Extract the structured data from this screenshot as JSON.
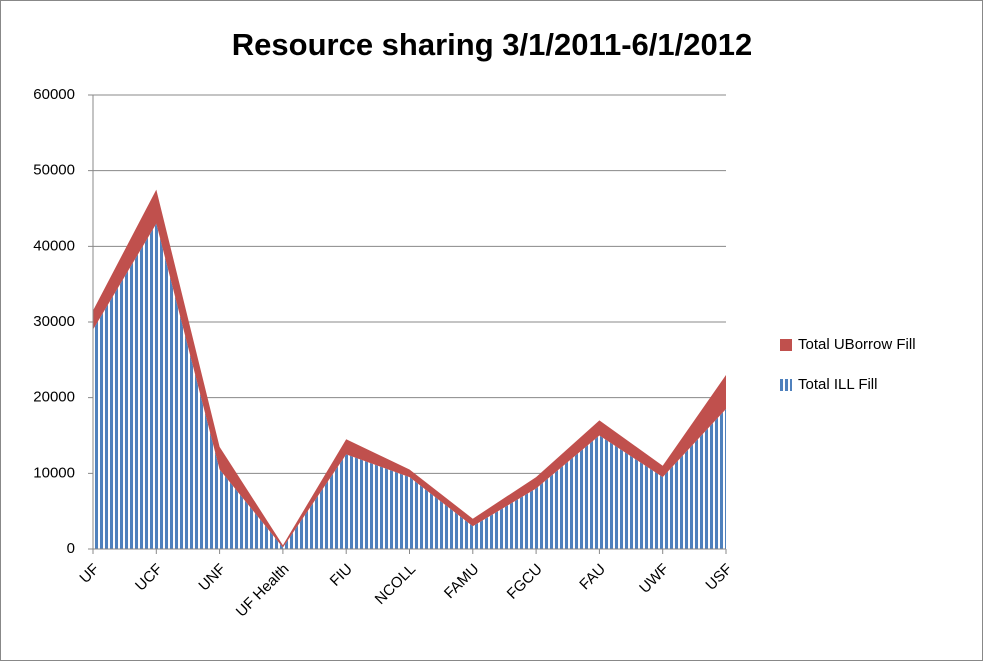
{
  "chart_data": {
    "type": "stacked_area",
    "title": "Resource sharing 3/1/2011-6/1/2012",
    "categories": [
      "UF",
      "UCF",
      "UNF",
      "UF Health",
      "FIU",
      "NCOLL",
      "FAMU",
      "FGCU",
      "FAU",
      "UWF",
      "USF"
    ],
    "series": [
      {
        "name": "Total ILL Fill",
        "color": "#4f81bd",
        "values": [
          29000,
          43000,
          10500,
          200,
          12500,
          9500,
          3000,
          8000,
          15000,
          9500,
          18500
        ]
      },
      {
        "name": "Total UBorrow Fill",
        "color": "#c0504d",
        "values": [
          2500,
          4500,
          3000,
          300,
          2000,
          1000,
          1000,
          1500,
          2000,
          1500,
          4500
        ]
      }
    ],
    "ylim": [
      0,
      60000
    ],
    "yticks": [
      0,
      10000,
      20000,
      30000,
      40000,
      50000,
      60000
    ],
    "grid": true,
    "legend": "right"
  }
}
